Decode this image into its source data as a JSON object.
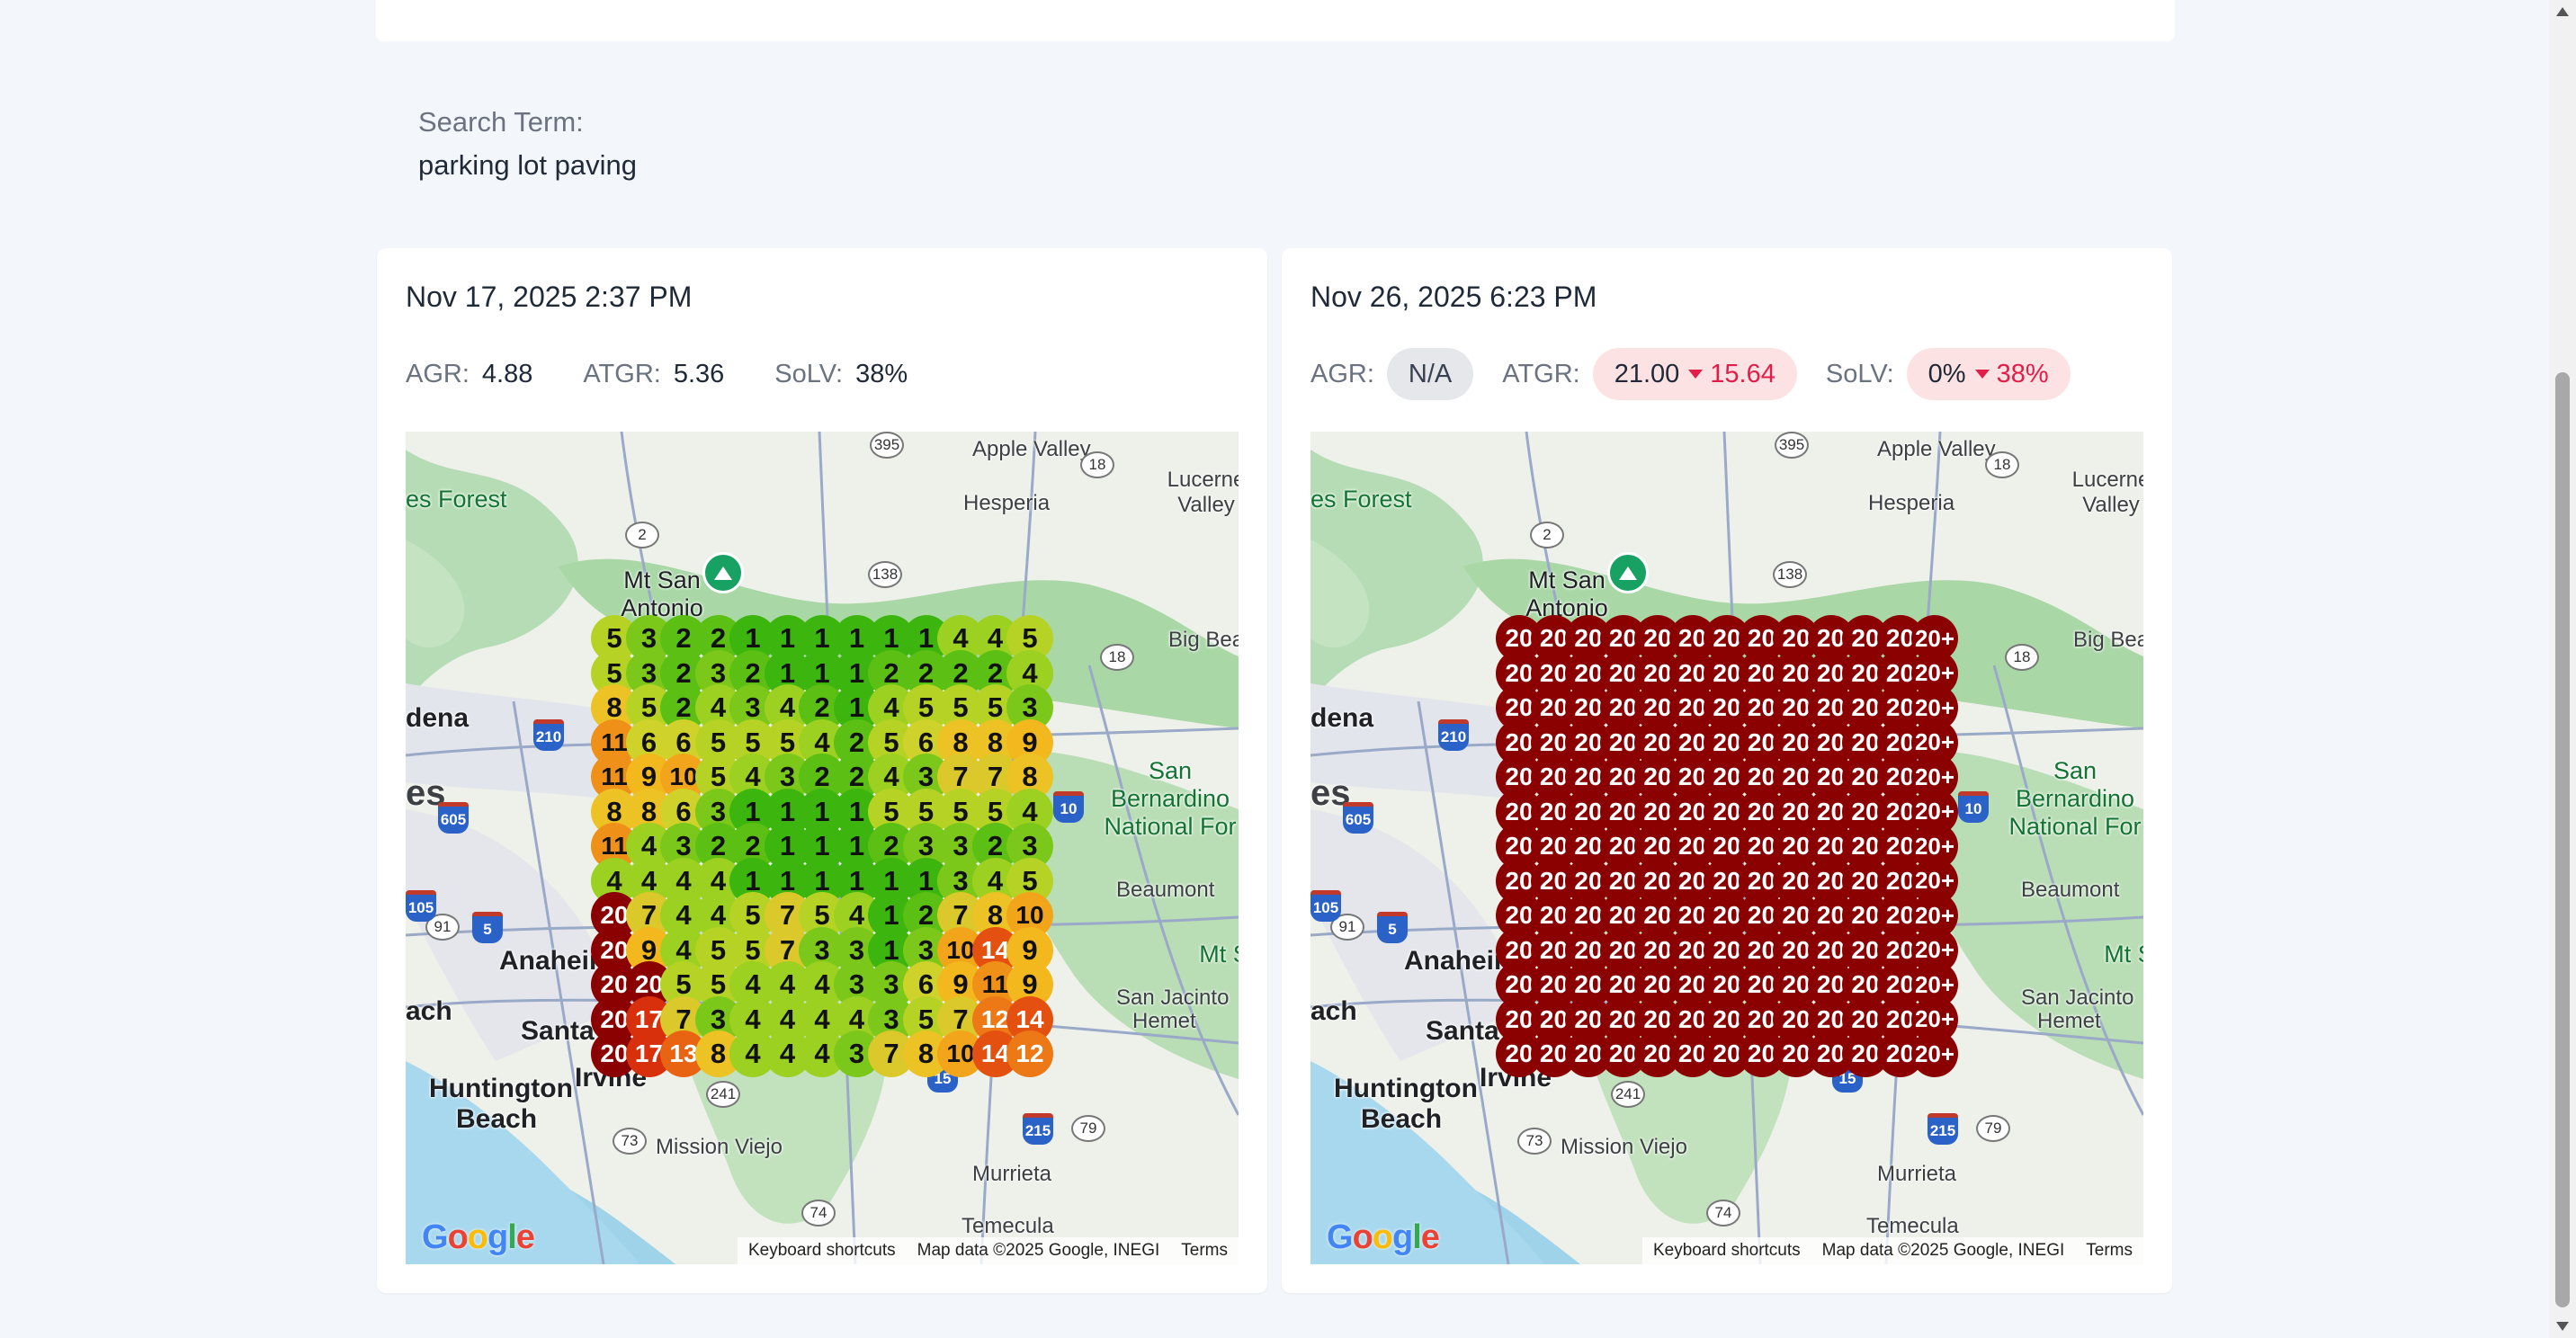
{
  "search": {
    "label": "Search Term:",
    "value": "parking lot paving"
  },
  "reports": [
    {
      "date": "Nov 17, 2025 2:37 PM",
      "metrics": {
        "agr_label": "AGR:",
        "agr_value": "4.88",
        "atgr_label": "ATGR:",
        "atgr_value": "5.36",
        "solv_label": "SoLV:",
        "solv_value": "38%"
      },
      "grid": [
        [
          "5",
          "3",
          "2",
          "2",
          "1",
          "1",
          "1",
          "1",
          "1",
          "1",
          "4",
          "4",
          "5"
        ],
        [
          "5",
          "3",
          "2",
          "3",
          "2",
          "1",
          "1",
          "1",
          "2",
          "2",
          "2",
          "2",
          "4"
        ],
        [
          "8",
          "5",
          "2",
          "4",
          "3",
          "4",
          "2",
          "1",
          "4",
          "5",
          "5",
          "5",
          "3"
        ],
        [
          "11",
          "6",
          "6",
          "5",
          "5",
          "5",
          "4",
          "2",
          "5",
          "6",
          "8",
          "8",
          "9"
        ],
        [
          "11",
          "9",
          "10",
          "5",
          "4",
          "3",
          "2",
          "2",
          "4",
          "3",
          "7",
          "7",
          "8"
        ],
        [
          "8",
          "8",
          "6",
          "3",
          "1",
          "1",
          "1",
          "1",
          "5",
          "5",
          "5",
          "5",
          "4"
        ],
        [
          "11",
          "4",
          "3",
          "2",
          "2",
          "1",
          "1",
          "1",
          "2",
          "3",
          "3",
          "2",
          "3"
        ],
        [
          "4",
          "4",
          "4",
          "4",
          "1",
          "1",
          "1",
          "1",
          "1",
          "1",
          "3",
          "4",
          "5"
        ],
        [
          "20",
          "7",
          "4",
          "4",
          "5",
          "7",
          "5",
          "4",
          "1",
          "2",
          "7",
          "8",
          "10"
        ],
        [
          "20",
          "9",
          "4",
          "5",
          "5",
          "7",
          "3",
          "3",
          "1",
          "3",
          "10",
          "14",
          "9"
        ],
        [
          "20",
          "20",
          "5",
          "5",
          "4",
          "4",
          "4",
          "3",
          "3",
          "6",
          "9",
          "11",
          "9"
        ],
        [
          "20",
          "17",
          "7",
          "3",
          "4",
          "4",
          "4",
          "4",
          "3",
          "5",
          "7",
          "12",
          "14"
        ],
        [
          "20",
          "17",
          "13",
          "8",
          "4",
          "4",
          "4",
          "3",
          "7",
          "8",
          "10",
          "14",
          "12"
        ]
      ]
    },
    {
      "date": "Nov 26, 2025 6:23 PM",
      "metrics": {
        "agr_label": "AGR:",
        "agr_value": "N/A",
        "atgr_label": "ATGR:",
        "atgr_value": "21.00",
        "atgr_delta": "15.64",
        "solv_label": "SoLV:",
        "solv_value": "0%",
        "solv_delta": "38%"
      },
      "grid_all_value": "20",
      "grid_last_col_value": "20+"
    }
  ],
  "map": {
    "places": [
      "Apple Valley",
      "Lucerne Valley",
      "Hesperia",
      "Mt San Antonio",
      "Big Bear L",
      "dena",
      "es",
      "San Bernardino National For",
      "Beaumont",
      "Mt San",
      "San Jacinto",
      "Hemet",
      "Anahein",
      "Santa",
      "ach",
      "Huntington Beach",
      "Irvine",
      "Mission Viejo",
      "Murrieta",
      "Temecula",
      "es Forest"
    ],
    "attribution": {
      "shortcuts": "Keyboard shortcuts",
      "mapdata": "Map data ©2025 Google, INEGI",
      "terms": "Terms"
    },
    "logo": "Google"
  },
  "colors": {
    "dark_red": "#8b0000",
    "accent_red": "#e11d48"
  }
}
